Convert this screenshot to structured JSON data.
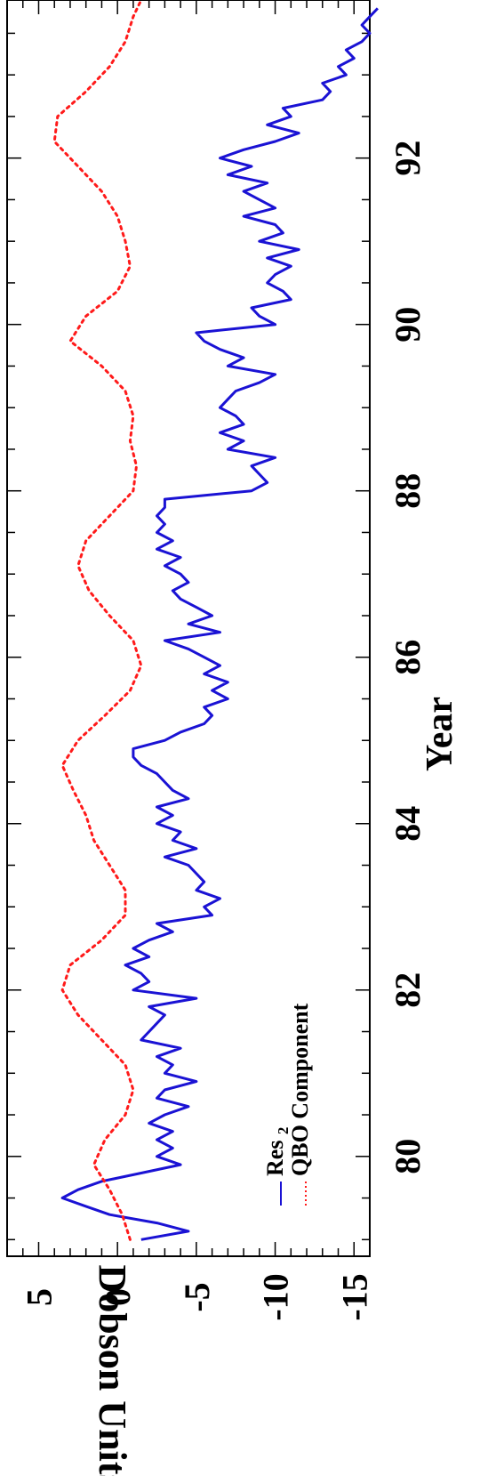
{
  "chart_data": {
    "type": "line",
    "orientation": "rotated-90-ccw",
    "xlabel": "Year",
    "ylabel": "Dobson Units",
    "xlim": [
      78.8,
      93.9
    ],
    "ylim": [
      -16,
      7
    ],
    "x_ticks": [
      "80",
      "82",
      "84",
      "86",
      "88",
      "90",
      "92"
    ],
    "y_ticks": [
      "5",
      "0",
      "-5",
      "-10",
      "-15"
    ],
    "legend": {
      "placement": "bottom-left",
      "entries": [
        {
          "label": "Res",
          "subscript": "2",
          "color": "#1a12d4",
          "style": "solid"
        },
        {
          "label": "QBO Component",
          "color": "#ff1a1a",
          "style": "dotted"
        }
      ]
    },
    "series": [
      {
        "name": "Res₂",
        "color": "#1a12d4",
        "style": "solid",
        "x": [
          79.0,
          79.1,
          79.2,
          79.3,
          79.4,
          79.5,
          79.6,
          79.7,
          79.8,
          79.9,
          80.0,
          80.1,
          80.2,
          80.3,
          80.4,
          80.5,
          80.6,
          80.7,
          80.8,
          80.9,
          81.0,
          81.1,
          81.2,
          81.3,
          81.4,
          81.5,
          81.6,
          81.7,
          81.8,
          81.9,
          82.0,
          82.1,
          82.2,
          82.3,
          82.4,
          82.5,
          82.6,
          82.7,
          82.8,
          82.9,
          83.0,
          83.1,
          83.2,
          83.3,
          83.4,
          83.5,
          83.6,
          83.7,
          83.8,
          83.9,
          84.0,
          84.1,
          84.2,
          84.3,
          84.4,
          84.5,
          84.6,
          84.7,
          84.8,
          84.9,
          85.0,
          85.1,
          85.2,
          85.3,
          85.4,
          85.5,
          85.6,
          85.7,
          85.8,
          85.9,
          86.0,
          86.1,
          86.2,
          86.3,
          86.4,
          86.5,
          86.6,
          86.7,
          86.8,
          86.9,
          87.0,
          87.1,
          87.2,
          87.3,
          87.4,
          87.5,
          87.6,
          87.7,
          87.8,
          87.9,
          88.0,
          88.1,
          88.2,
          88.3,
          88.4,
          88.5,
          88.6,
          88.7,
          88.8,
          88.9,
          89.0,
          89.1,
          89.2,
          89.3,
          89.4,
          89.5,
          89.6,
          89.7,
          89.8,
          89.9,
          90.0,
          90.1,
          90.2,
          90.3,
          90.4,
          90.5,
          90.6,
          90.7,
          90.8,
          90.9,
          91.0,
          91.1,
          91.2,
          91.3,
          91.4,
          91.5,
          91.6,
          91.7,
          91.8,
          91.9,
          92.0,
          92.1,
          92.2,
          92.3,
          92.4,
          92.5,
          92.6,
          92.7,
          92.8,
          92.9,
          93.0,
          93.1,
          93.2,
          93.3,
          93.4,
          93.5,
          93.6,
          93.7,
          93.8
        ],
        "y": [
          -1.5,
          -4.5,
          -2.5,
          0.5,
          2.0,
          3.5,
          2.5,
          1.0,
          -1.5,
          -4.0,
          -2.5,
          -3.5,
          -2.5,
          -3.5,
          -2.0,
          -3.0,
          -4.5,
          -2.5,
          -3.0,
          -5.0,
          -3.0,
          -3.5,
          -2.5,
          -4.0,
          -1.5,
          -2.0,
          -2.5,
          -3.0,
          -2.0,
          -5.0,
          -1.0,
          -2.0,
          -1.5,
          -0.5,
          -2.0,
          -1.0,
          -2.0,
          -3.5,
          -2.5,
          -6.0,
          -5.5,
          -6.5,
          -5.0,
          -5.5,
          -5.0,
          -4.5,
          -3.0,
          -5.0,
          -3.5,
          -4.0,
          -2.5,
          -3.5,
          -2.5,
          -4.5,
          -3.5,
          -3.0,
          -2.5,
          -1.5,
          -1.0,
          -1.0,
          -3.0,
          -4.0,
          -5.5,
          -6.0,
          -5.5,
          -7.0,
          -6.0,
          -7.0,
          -5.5,
          -6.5,
          -5.5,
          -4.5,
          -3.0,
          -6.5,
          -4.5,
          -6.0,
          -5.0,
          -4.0,
          -3.5,
          -4.5,
          -4.0,
          -3.0,
          -4.0,
          -2.5,
          -3.5,
          -2.5,
          -3.0,
          -2.5,
          -3.0,
          -3.0,
          -8.5,
          -9.5,
          -9.0,
          -8.5,
          -10.0,
          -7.0,
          -8.0,
          -6.5,
          -8.0,
          -7.5,
          -6.5,
          -7.0,
          -7.5,
          -9.0,
          -10.0,
          -7.0,
          -8.0,
          -6.5,
          -5.5,
          -5.0,
          -10.0,
          -9.0,
          -8.5,
          -11.0,
          -10.5,
          -9.5,
          -10.0,
          -11.0,
          -9.5,
          -11.5,
          -9.0,
          -10.5,
          -10.0,
          -8.0,
          -10.0,
          -9.0,
          -8.0,
          -9.5,
          -7.0,
          -8.5,
          -6.5,
          -8.0,
          -10.0,
          -11.5,
          -9.5,
          -11.0,
          -10.5,
          -13.0,
          -13.5,
          -13.0,
          -14.5,
          -14.0,
          -15.0,
          -14.5,
          -15.5,
          -16.0,
          -15.5,
          -16.0,
          -16.5
        ]
      },
      {
        "name": "QBO Component",
        "color": "#ff1a1a",
        "style": "dotted",
        "x": [
          79.0,
          79.3,
          79.6,
          79.9,
          80.2,
          80.5,
          80.8,
          81.1,
          81.4,
          81.7,
          82.0,
          82.3,
          82.6,
          82.9,
          83.2,
          83.5,
          83.8,
          84.1,
          84.4,
          84.7,
          85.0,
          85.3,
          85.6,
          85.9,
          86.2,
          86.5,
          86.8,
          87.1,
          87.4,
          87.7,
          88.0,
          88.3,
          88.6,
          88.9,
          89.2,
          89.5,
          89.8,
          90.1,
          90.4,
          90.7,
          91.0,
          91.3,
          91.6,
          91.9,
          92.2,
          92.5,
          92.8,
          93.1,
          93.4,
          93.7,
          93.9
        ],
        "y": [
          -0.8,
          -0.3,
          0.5,
          1.5,
          0.8,
          -0.5,
          -1.0,
          -0.5,
          1.0,
          2.5,
          3.5,
          3.0,
          1.0,
          -0.5,
          -0.5,
          0.5,
          1.5,
          2.0,
          2.8,
          3.5,
          2.5,
          0.8,
          -0.8,
          -1.5,
          -1.0,
          0.5,
          1.8,
          2.5,
          2.0,
          0.5,
          -1.0,
          -1.2,
          -0.8,
          -1.0,
          -0.5,
          1.0,
          3.0,
          2.0,
          0.0,
          -0.8,
          -0.5,
          0.0,
          1.0,
          2.5,
          4.0,
          3.8,
          2.0,
          0.5,
          -0.5,
          -1.0,
          -1.5
        ]
      }
    ]
  }
}
